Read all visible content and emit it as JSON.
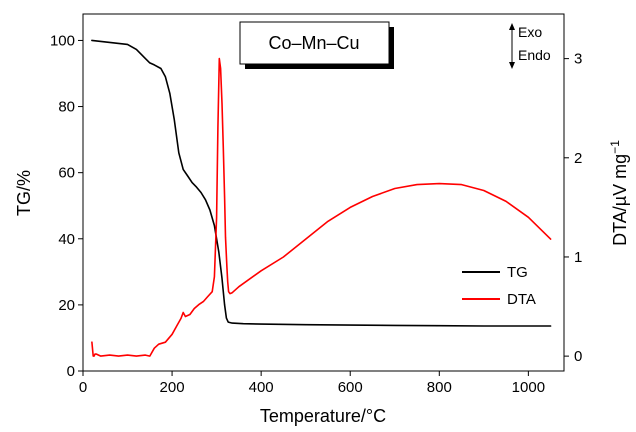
{
  "chart_data": {
    "type": "line",
    "title": "Co–Mn–Cu",
    "xlabel": "Temperature/°C",
    "ylabel_left": "TG/%",
    "ylabel_right_main": "DTA/µV mg",
    "ylabel_right_sup": "−1",
    "xlim": [
      0,
      1080
    ],
    "ylim_left": [
      0,
      108
    ],
    "ylim_right": [
      -0.15,
      3.45
    ],
    "x_ticks": [
      0,
      200,
      400,
      600,
      800,
      1000
    ],
    "x_tick_labels": [
      "0",
      "200",
      "400",
      "600",
      "800",
      "1000"
    ],
    "y_left_ticks": [
      0,
      20,
      40,
      60,
      80,
      100
    ],
    "y_left_tick_labels": [
      "0",
      "20",
      "40",
      "60",
      "80",
      "100"
    ],
    "y_right_ticks": [
      0,
      1,
      2,
      3
    ],
    "y_right_tick_labels": [
      "0",
      "1",
      "2",
      "3"
    ],
    "grid": false,
    "legend_position": "bottom-right",
    "annotation_exo": "Exo",
    "annotation_endo": "Endo",
    "series": [
      {
        "name": "TG",
        "axis": "left",
        "color": "#000000",
        "x": [
          20,
          60,
          100,
          120,
          140,
          150,
          160,
          175,
          185,
          195,
          205,
          215,
          225,
          235,
          245,
          255,
          265,
          275,
          285,
          295,
          305,
          312,
          318,
          322,
          326,
          335,
          360,
          400,
          500,
          600,
          700,
          800,
          900,
          1000,
          1050
        ],
        "y": [
          100,
          99.4,
          98.8,
          97.3,
          94.5,
          93.2,
          92.6,
          91.5,
          89,
          84,
          76,
          66,
          61,
          59,
          57,
          55.6,
          54,
          51.8,
          48.7,
          44,
          36,
          28,
          20,
          16,
          14.8,
          14.5,
          14.3,
          14.2,
          14.0,
          13.9,
          13.8,
          13.7,
          13.6,
          13.6,
          13.6
        ]
      },
      {
        "name": "DTA",
        "axis": "right",
        "color": "#ff0000",
        "x": [
          20,
          23,
          25,
          27,
          30,
          40,
          60,
          80,
          100,
          120,
          140,
          150,
          160,
          170,
          185,
          200,
          210,
          220,
          225,
          230,
          240,
          250,
          260,
          270,
          280,
          290,
          295,
          300,
          303,
          306,
          309,
          312,
          315,
          318,
          320,
          323,
          325,
          327,
          330,
          335,
          350,
          400,
          450,
          500,
          550,
          600,
          650,
          700,
          750,
          800,
          850,
          900,
          950,
          1000,
          1050
        ],
        "y": [
          0.14,
          0.0,
          0.0,
          0.02,
          0.02,
          0.0,
          0.01,
          0.0,
          0.01,
          0.0,
          0.01,
          0.0,
          0.08,
          0.12,
          0.14,
          0.22,
          0.3,
          0.38,
          0.44,
          0.4,
          0.42,
          0.48,
          0.52,
          0.55,
          0.6,
          0.65,
          0.8,
          1.4,
          2.3,
          3.0,
          2.9,
          2.55,
          2.1,
          1.6,
          1.2,
          0.9,
          0.75,
          0.65,
          0.63,
          0.64,
          0.7,
          0.86,
          1.0,
          1.18,
          1.36,
          1.5,
          1.61,
          1.69,
          1.73,
          1.74,
          1.73,
          1.67,
          1.56,
          1.4,
          1.18
        ]
      }
    ]
  }
}
